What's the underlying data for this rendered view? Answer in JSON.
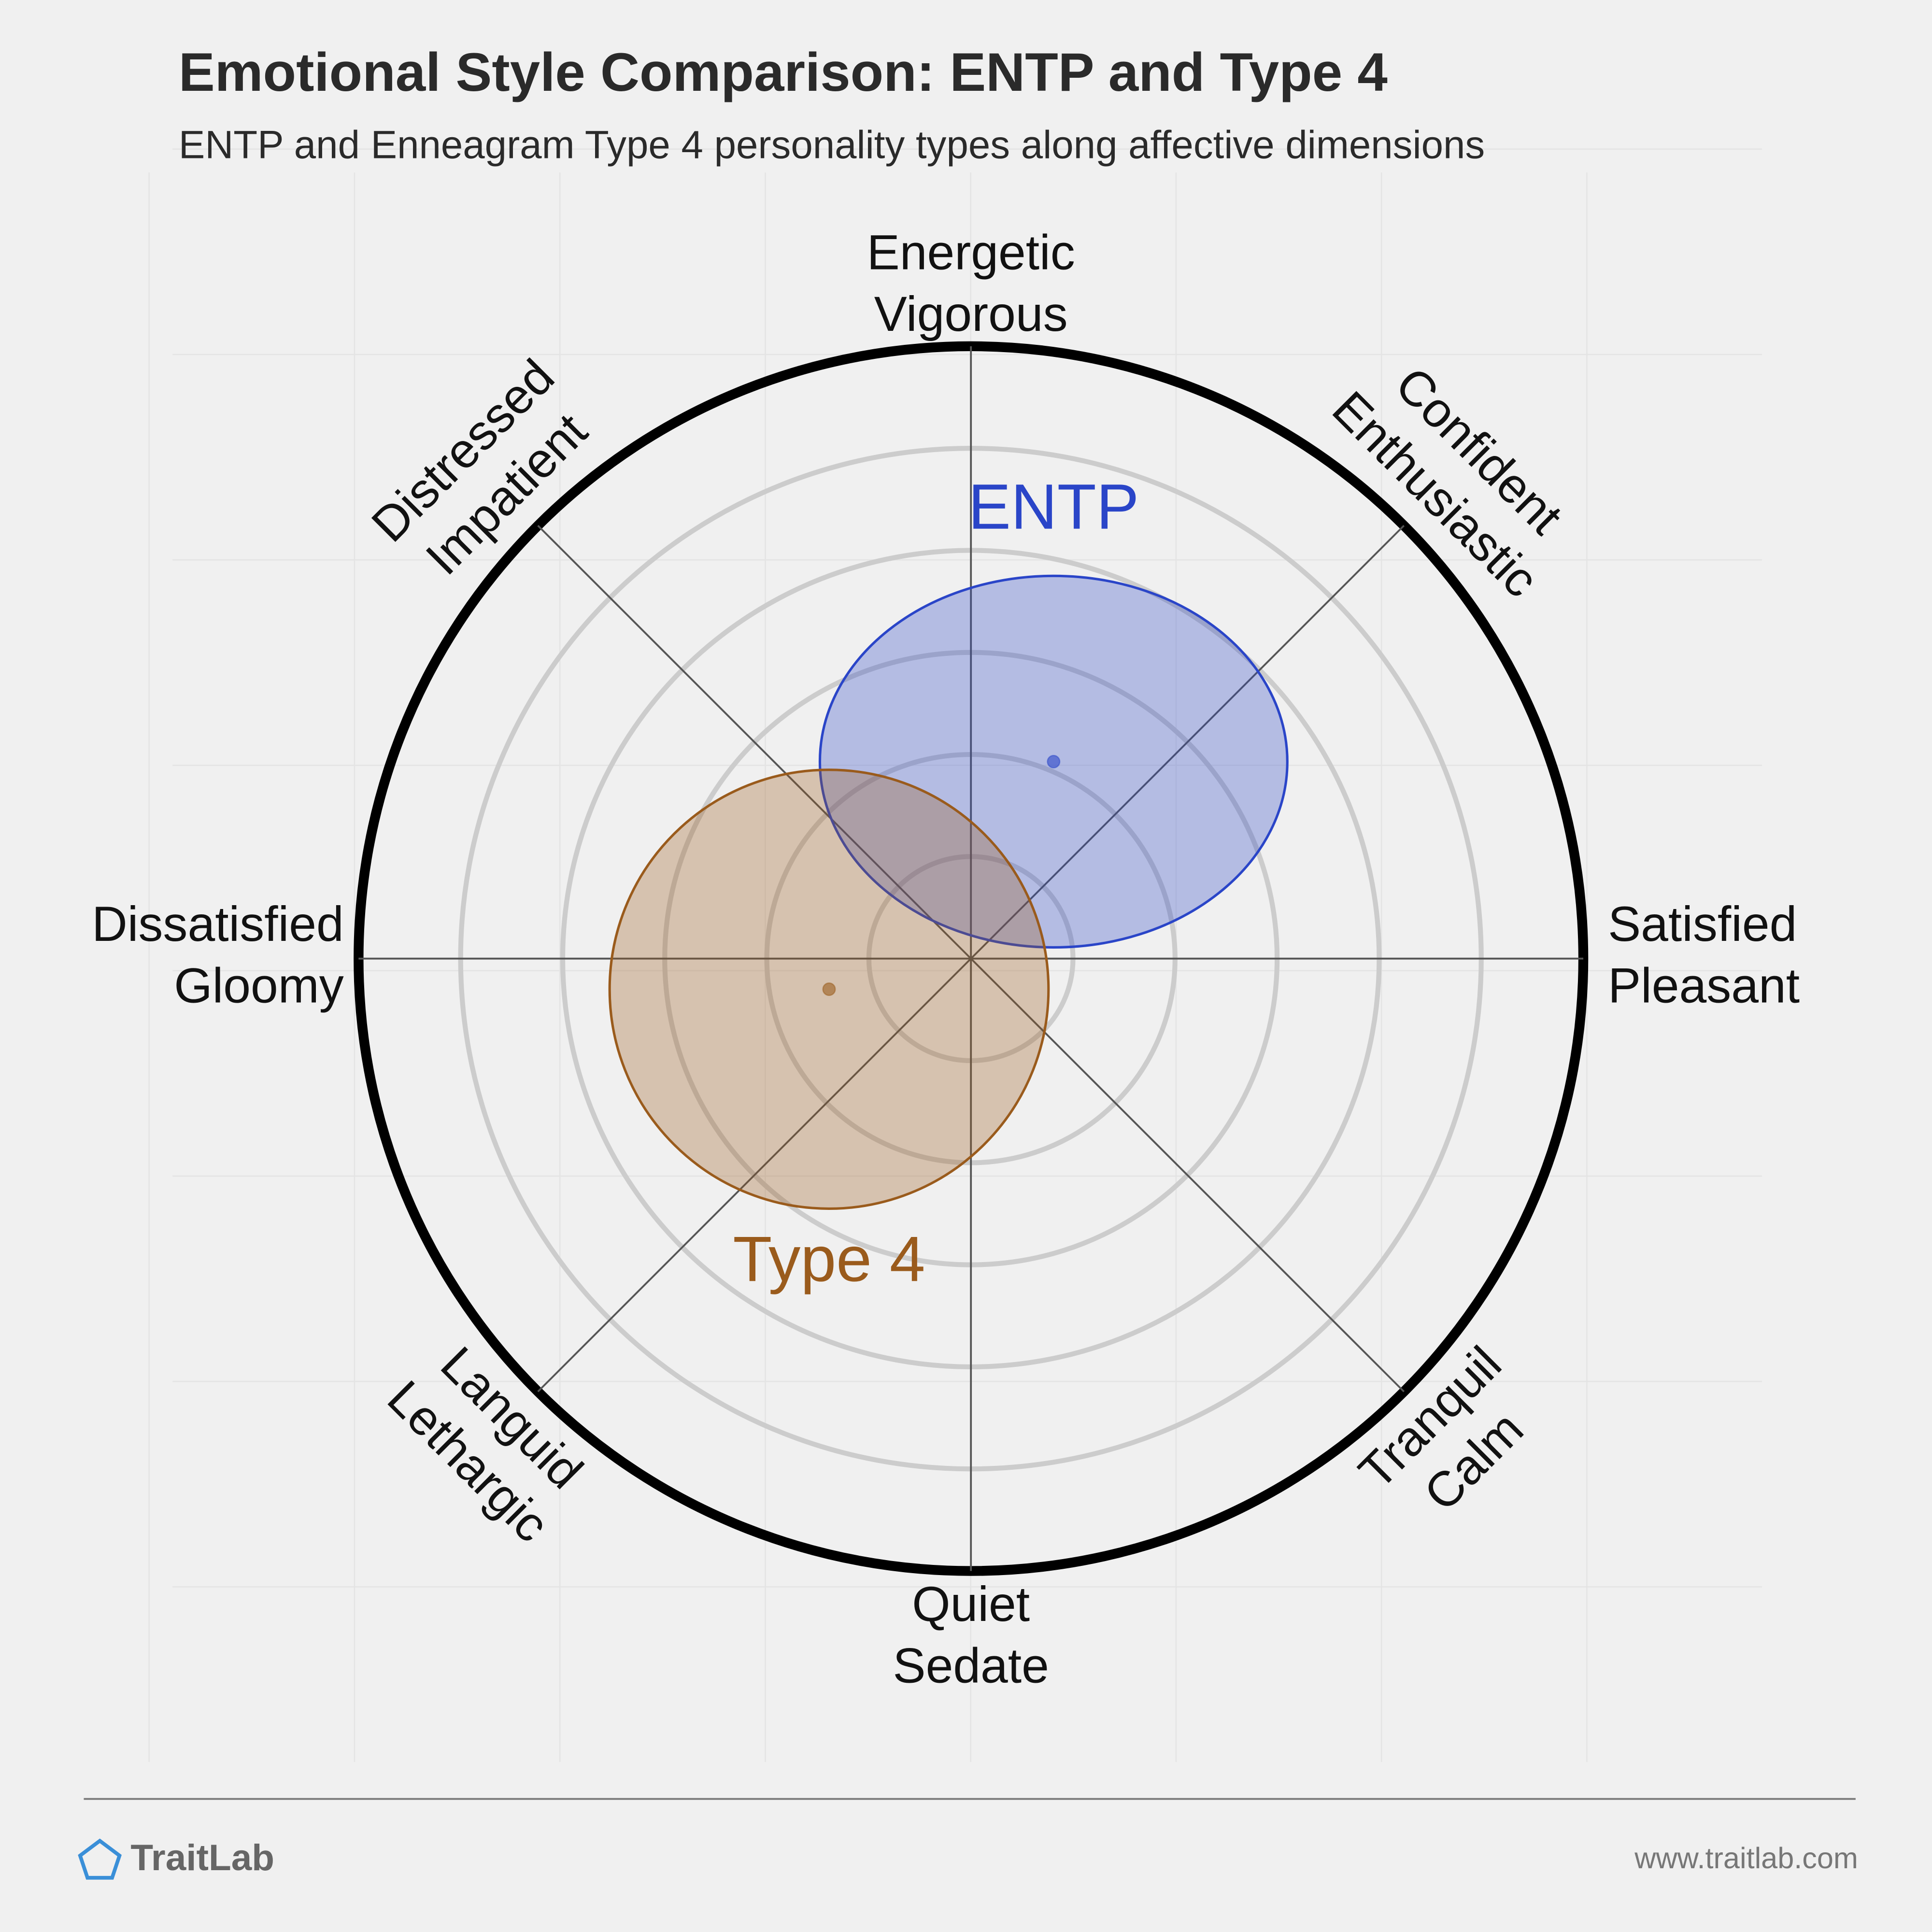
{
  "chart_data": {
    "type": "circumplex",
    "title": "Emotional Style Comparison: ENTP and Type 4",
    "subtitle": "ENTP and Enneagram Type 4 personality types along affective dimensions",
    "axis_labels": [
      [
        "Energetic",
        "Vigorous"
      ],
      [
        "Confident",
        "Enthusiastic"
      ],
      [
        "Satisfied",
        "Pleasant"
      ],
      [
        "Tranquil",
        "Calm"
      ],
      [
        "Quiet",
        "Sedate"
      ],
      [
        "Languid",
        "Lethargic"
      ],
      [
        "Dissatisfied",
        "Gloomy"
      ],
      [
        "Distressed",
        "Impatient"
      ]
    ],
    "rlim": [
      0,
      6
    ],
    "rticks": [
      1,
      2,
      3,
      4,
      5
    ],
    "series": [
      {
        "name": "ENTP",
        "color": "#2a45c8",
        "x": 0.81,
        "y": 1.93,
        "rx": 2.29,
        "ry": 1.82
      },
      {
        "name": "Type 4",
        "color": "#9a5b1c",
        "x": -1.39,
        "y": -0.3,
        "rx": 2.15,
        "ry": 2.15
      }
    ],
    "brand": "TraitLab",
    "url": "www.traitlab.com"
  }
}
